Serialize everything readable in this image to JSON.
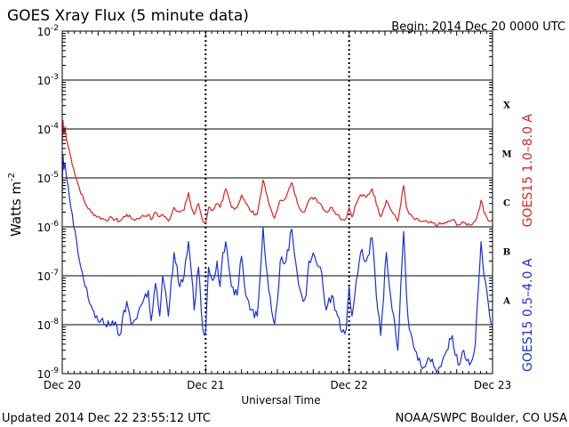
{
  "header": {
    "title": "GOES Xray Flux (5 minute data)",
    "begin": "Begin:  2014 Dec 20 0000 UTC"
  },
  "footer": {
    "updated": "Updated 2014 Dec 22 23:55:12 UTC",
    "credit": "NOAA/SWPC Boulder, CO USA"
  },
  "colors": {
    "long": "#e02020",
    "short": "#1a2ee0",
    "axis": "#000000"
  },
  "chart_data": {
    "type": "line",
    "title": "GOES Xray Flux (5 minute data)",
    "xlabel": "Universal Time",
    "ylabel_base": "Watts m",
    "ylabel_sup": "-2",
    "yscale": "log",
    "ylim": [
      1e-09,
      0.01
    ],
    "xlim": [
      0,
      3
    ],
    "x_ticks": [
      {
        "x": 0,
        "label": "Dec 20"
      },
      {
        "x": 1,
        "label": "Dec 21"
      },
      {
        "x": 2,
        "label": "Dec 22"
      },
      {
        "x": 3,
        "label": "Dec 23"
      }
    ],
    "y_ticks": [
      {
        "exp": -9,
        "base": "10",
        "sup": "-9"
      },
      {
        "exp": -8,
        "base": "10",
        "sup": "-8"
      },
      {
        "exp": -7,
        "base": "10",
        "sup": "-7"
      },
      {
        "exp": -6,
        "base": "10",
        "sup": "-6"
      },
      {
        "exp": -5,
        "base": "10",
        "sup": "-5"
      },
      {
        "exp": -4,
        "base": "10",
        "sup": "-4"
      },
      {
        "exp": -3,
        "base": "10",
        "sup": "-3"
      },
      {
        "exp": -2,
        "base": "10",
        "sup": "-2"
      }
    ],
    "flare_classes": [
      {
        "label": "X",
        "exp": -3.5
      },
      {
        "label": "M",
        "exp": -4.5
      },
      {
        "label": "C",
        "exp": -5.5
      },
      {
        "label": "B",
        "exp": -6.5
      },
      {
        "label": "A",
        "exp": -7.5
      }
    ],
    "grid": true,
    "series": [
      {
        "name": "GOES15 1.0–8.0 A",
        "color": "#e02020",
        "x": [
          0.0,
          0.005,
          0.012,
          0.02,
          0.03,
          0.05,
          0.08,
          0.12,
          0.16,
          0.2,
          0.25,
          0.3,
          0.35,
          0.4,
          0.45,
          0.48,
          0.5,
          0.55,
          0.6,
          0.62,
          0.65,
          0.68,
          0.7,
          0.74,
          0.78,
          0.82,
          0.85,
          0.88,
          0.9,
          0.92,
          0.95,
          0.98,
          1.0,
          1.02,
          1.05,
          1.08,
          1.1,
          1.12,
          1.14,
          1.18,
          1.22,
          1.25,
          1.28,
          1.3,
          1.32,
          1.36,
          1.4,
          1.44,
          1.48,
          1.5,
          1.52,
          1.56,
          1.6,
          1.64,
          1.68,
          1.7,
          1.72,
          1.76,
          1.8,
          1.84,
          1.88,
          1.92,
          1.95,
          1.98,
          2.0,
          2.02,
          2.05,
          2.08,
          2.12,
          2.16,
          2.2,
          2.22,
          2.26,
          2.3,
          2.34,
          2.38,
          2.4,
          2.42,
          2.46,
          2.5,
          2.56,
          2.62,
          2.68,
          2.72,
          2.76,
          2.8,
          2.84,
          2.88,
          2.9,
          2.92,
          2.94,
          2.96,
          2.98,
          3.0
        ],
        "y": [
          5e-05,
          0.00015,
          8e-05,
          0.00011,
          6e-05,
          3.5e-05,
          1.5e-05,
          6e-06,
          3e-06,
          2e-06,
          1.6e-06,
          1.4e-06,
          1.5e-06,
          1.3e-06,
          1.8e-06,
          1.5e-06,
          1.4e-06,
          1.6e-06,
          1.8e-06,
          1.4e-06,
          2e-06,
          1.6e-06,
          1.8e-06,
          1.3e-06,
          2.5e-06,
          2e-06,
          2.2e-06,
          5e-06,
          2.5e-06,
          1.8e-06,
          3e-06,
          1.3e-06,
          1.2e-06,
          2.5e-06,
          2.2e-06,
          3e-06,
          2.5e-06,
          3.5e-06,
          6e-06,
          2.5e-06,
          2.5e-06,
          4.5e-06,
          3e-06,
          2.5e-06,
          2e-06,
          1.8e-06,
          9e-06,
          3e-06,
          1.5e-06,
          2.2e-06,
          3.5e-06,
          4e-06,
          8e-06,
          3e-06,
          2e-06,
          2.5e-06,
          3.5e-06,
          4e-06,
          3e-06,
          2e-06,
          2.5e-06,
          1.8e-06,
          1.4e-06,
          1.5e-06,
          2.5e-06,
          1.6e-06,
          3e-06,
          4.5e-06,
          4e-06,
          6e-06,
          2.5e-06,
          1.6e-06,
          3.5e-06,
          2e-06,
          1.3e-06,
          7e-06,
          2.5e-06,
          1.8e-06,
          1.4e-06,
          1.3e-06,
          1.2e-06,
          1.1e-06,
          1.2e-06,
          1.4e-06,
          1.1e-06,
          1.2e-06,
          1.1e-06,
          1.3e-06,
          2e-06,
          3.5e-06,
          2e-06,
          1.6e-06,
          1.3e-06,
          1.4e-06
        ]
      },
      {
        "name": "GOES15 0.5–4.0 A",
        "color": "#1a2ee0",
        "x": [
          0.0,
          0.005,
          0.012,
          0.02,
          0.03,
          0.05,
          0.08,
          0.12,
          0.16,
          0.2,
          0.25,
          0.3,
          0.35,
          0.4,
          0.45,
          0.48,
          0.5,
          0.55,
          0.6,
          0.62,
          0.65,
          0.68,
          0.7,
          0.74,
          0.78,
          0.82,
          0.85,
          0.88,
          0.9,
          0.92,
          0.95,
          0.98,
          1.0,
          1.02,
          1.05,
          1.08,
          1.1,
          1.12,
          1.14,
          1.18,
          1.22,
          1.25,
          1.28,
          1.3,
          1.32,
          1.36,
          1.4,
          1.44,
          1.48,
          1.5,
          1.52,
          1.56,
          1.6,
          1.64,
          1.68,
          1.7,
          1.72,
          1.76,
          1.8,
          1.84,
          1.88,
          1.92,
          1.95,
          1.98,
          2.0,
          2.02,
          2.05,
          2.08,
          2.12,
          2.16,
          2.2,
          2.22,
          2.26,
          2.3,
          2.34,
          2.38,
          2.4,
          2.42,
          2.46,
          2.5,
          2.56,
          2.62,
          2.68,
          2.72,
          2.76,
          2.8,
          2.84,
          2.88,
          2.9,
          2.92,
          2.94,
          2.96,
          2.98,
          3.0
        ],
        "y": [
          5e-06,
          3e-05,
          1.5e-05,
          2e-05,
          1e-05,
          4e-06,
          1e-06,
          2e-07,
          6e-08,
          2.5e-08,
          1.2e-08,
          1e-08,
          1.2e-08,
          6e-09,
          3e-08,
          1e-08,
          1.2e-08,
          2.5e-08,
          5e-08,
          1.2e-08,
          7e-08,
          1.5e-08,
          1e-07,
          1.5e-08,
          3e-07,
          6e-08,
          1e-07,
          5e-07,
          1.2e-07,
          2e-08,
          1.5e-07,
          8e-09,
          7e-09,
          1.5e-07,
          8e-08,
          2e-07,
          6e-08,
          3e-07,
          5e-07,
          6e-08,
          4e-08,
          2.5e-07,
          4e-08,
          3e-08,
          2e-08,
          1.5e-08,
          1e-06,
          5e-08,
          1e-08,
          3e-08,
          2e-07,
          2e-07,
          9e-07,
          1e-07,
          3e-08,
          4e-08,
          2e-07,
          2.5e-07,
          1.5e-07,
          2e-08,
          4e-08,
          1.5e-08,
          7e-09,
          8e-09,
          6e-08,
          1.5e-08,
          8e-08,
          3e-07,
          2e-07,
          6e-07,
          2e-08,
          6e-09,
          3e-07,
          2e-08,
          3e-09,
          8e-07,
          4e-08,
          8e-09,
          3e-09,
          1.5e-09,
          2e-09,
          1.2e-09,
          3e-09,
          6e-09,
          1.5e-09,
          3e-09,
          1.5e-09,
          4e-09,
          5e-08,
          5e-07,
          1e-07,
          5e-08,
          1.5e-08,
          1e-08
        ]
      }
    ]
  }
}
